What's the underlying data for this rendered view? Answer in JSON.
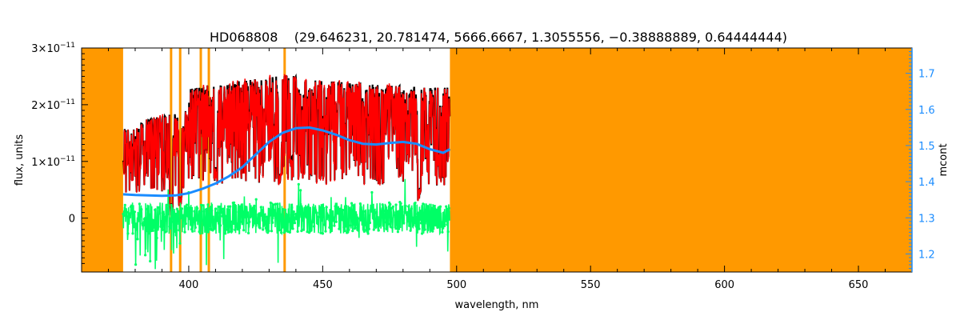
{
  "colors": {
    "mask": "#ff9900",
    "flux_observed": "#000000",
    "flux_model": "#ff0000",
    "residual": "#00ff66",
    "continuum": "#1a8cff",
    "right_axis": "#1a8cff",
    "axes": "#000000"
  },
  "chart_data": {
    "type": "line",
    "title": "HD068808    (29.646231, 20.781474, 5666.6667, 1.3055556, −0.38888889, 0.64444444)",
    "xlabel": "wavelength, nm",
    "ylabel": "flux, units",
    "y2label": "mcont",
    "xlim": [
      360,
      670
    ],
    "ylim": [
      -9.5e-12,
      3e-11
    ],
    "y2lim": [
      1.15,
      1.77
    ],
    "x_ticks": [
      400,
      450,
      500,
      550,
      600,
      650
    ],
    "x_tick_labels": [
      "400",
      "450",
      "500",
      "550",
      "600",
      "650"
    ],
    "y_ticks": [
      0,
      1e-11,
      2e-11,
      3e-11
    ],
    "y_tick_labels": [
      {
        "mantissa": "0",
        "exponent": ""
      },
      {
        "mantissa": "1×10",
        "exponent": "−11"
      },
      {
        "mantissa": "2×10",
        "exponent": "−11"
      },
      {
        "mantissa": "3×10",
        "exponent": "−11"
      }
    ],
    "y2_ticks": [
      1.2,
      1.3,
      1.4,
      1.5,
      1.6,
      1.7
    ],
    "y2_tick_labels": [
      "1.2",
      "1.3",
      "1.4",
      "1.5",
      "1.6",
      "1.7"
    ],
    "grid": false,
    "data_range": [
      375.5,
      497.5
    ],
    "mask_regions": [
      [
        360,
        375.5
      ],
      [
        497.5,
        670
      ]
    ],
    "mask_lines": [
      393.4,
      396.8,
      404.5,
      407.5,
      435.8
    ],
    "continuum": {
      "axis": "right",
      "x": [
        375.5,
        380,
        385,
        390,
        395,
        400,
        405,
        410,
        415,
        420,
        425,
        430,
        435,
        440,
        445,
        450,
        455,
        460,
        465,
        470,
        475,
        480,
        485,
        490,
        495,
        497.5
      ],
      "y": [
        1.365,
        1.363,
        1.362,
        1.361,
        1.362,
        1.368,
        1.38,
        1.395,
        1.415,
        1.44,
        1.475,
        1.51,
        1.535,
        1.548,
        1.55,
        1.542,
        1.53,
        1.515,
        1.505,
        1.503,
        1.507,
        1.51,
        1.505,
        1.49,
        1.48,
        1.49
      ]
    },
    "series": [
      {
        "name": "",
        "role": "observed",
        "axis": "left"
      },
      {
        "name": "",
        "role": "model",
        "axis": "left"
      },
      {
        "name": "",
        "role": "residual",
        "axis": "left"
      },
      {
        "name": "",
        "role": "continuum",
        "axis": "right"
      }
    ]
  }
}
